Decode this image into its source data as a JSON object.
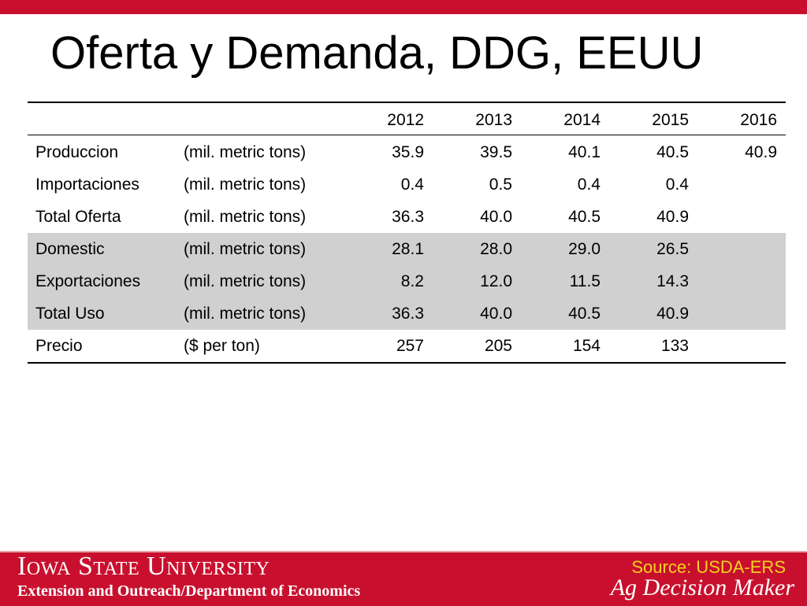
{
  "header": {
    "title": "Oferta y Demanda, DDG, EEUU"
  },
  "table": {
    "columns": [
      "2012",
      "2013",
      "2014",
      "2015",
      "2016"
    ],
    "rows": [
      {
        "label": "Produccion",
        "unit": "(mil. metric tons)",
        "values": [
          "35.9",
          "39.5",
          "40.1",
          "40.5",
          "40.9"
        ],
        "shaded": false
      },
      {
        "label": "Importaciones",
        "unit": "(mil. metric tons)",
        "values": [
          "0.4",
          "0.5",
          "0.4",
          "0.4",
          null
        ],
        "shaded": false
      },
      {
        "label": "Total Oferta",
        "unit": "(mil. metric tons)",
        "values": [
          "36.3",
          "40.0",
          "40.5",
          "40.9",
          null
        ],
        "shaded": false
      },
      {
        "label": "Domestic",
        "unit": "(mil. metric tons)",
        "values": [
          "28.1",
          "28.0",
          "29.0",
          "26.5",
          null
        ],
        "shaded": true
      },
      {
        "label": "Exportaciones",
        "unit": "(mil. metric tons)",
        "values": [
          "8.2",
          "12.0",
          "11.5",
          "14.3",
          null
        ],
        "shaded": true
      },
      {
        "label": "Total Uso",
        "unit": "(mil. metric tons)",
        "values": [
          "36.3",
          "40.0",
          "40.5",
          "40.9",
          null
        ],
        "shaded": true
      },
      {
        "label": "Precio",
        "unit": "($ per ton)",
        "values": [
          "257",
          "205",
          "154",
          "133",
          null
        ],
        "shaded": false
      }
    ]
  },
  "footer": {
    "university": "Iowa State University",
    "department": "Extension and Outreach/Department of Economics",
    "source": "Source: USDA-ERS",
    "brand": "Ag Decision Maker"
  }
}
